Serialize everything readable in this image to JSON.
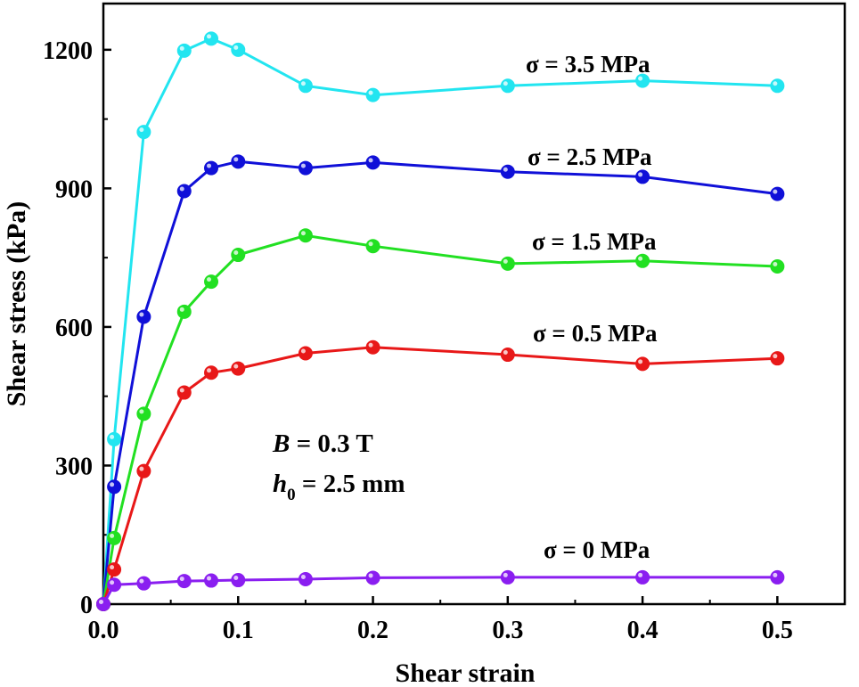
{
  "chart_data": {
    "type": "line",
    "title": "",
    "xlabel": "Shear strain",
    "ylabel": "Shear stress (kPa)",
    "xlim": [
      0,
      0.55
    ],
    "ylim": [
      0,
      1300
    ],
    "xticks": [
      0.0,
      0.1,
      0.2,
      0.3,
      0.4,
      0.5
    ],
    "xtick_labels": [
      "0.0",
      "0.1",
      "0.2",
      "0.3",
      "0.4",
      "0.5"
    ],
    "yticks": [
      0,
      300,
      600,
      900,
      1200
    ],
    "ytick_labels": [
      "0",
      "300",
      "600",
      "900",
      "1200"
    ],
    "grid": false,
    "series": [
      {
        "name": "σ = 3.5 MPa",
        "color": "#22e5f0",
        "x": [
          0,
          0.008,
          0.03,
          0.06,
          0.08,
          0.1,
          0.15,
          0.2,
          0.3,
          0.4,
          0.5
        ],
        "y": [
          0,
          357,
          1022,
          1198,
          1224,
          1200,
          1122,
          1102,
          1122,
          1133,
          1122
        ]
      },
      {
        "name": "σ = 2.5 MPa",
        "color": "#1010d8",
        "x": [
          0,
          0.008,
          0.03,
          0.06,
          0.08,
          0.1,
          0.15,
          0.2,
          0.3,
          0.4,
          0.5
        ],
        "y": [
          0,
          254,
          622,
          894,
          944,
          958,
          944,
          956,
          936,
          925,
          888
        ]
      },
      {
        "name": "σ = 1.5 MPa",
        "color": "#22e022",
        "x": [
          0,
          0.008,
          0.03,
          0.06,
          0.08,
          0.1,
          0.15,
          0.2,
          0.3,
          0.4,
          0.5
        ],
        "y": [
          0,
          143,
          412,
          633,
          698,
          756,
          798,
          775,
          737,
          743,
          731
        ]
      },
      {
        "name": "σ = 0.5 MPa",
        "color": "#e81818",
        "x": [
          0,
          0.008,
          0.03,
          0.06,
          0.08,
          0.1,
          0.15,
          0.2,
          0.3,
          0.4,
          0.5
        ],
        "y": [
          0,
          75,
          288,
          458,
          501,
          510,
          543,
          556,
          540,
          520,
          532
        ]
      },
      {
        "name": "σ = 0 MPa",
        "color": "#8a1ef0",
        "x": [
          0,
          0.008,
          0.03,
          0.06,
          0.08,
          0.1,
          0.15,
          0.2,
          0.3,
          0.4,
          0.5
        ],
        "y": [
          0,
          42,
          45,
          50,
          51,
          52,
          54,
          57,
          58,
          58,
          58
        ]
      }
    ],
    "annotations": {
      "b_var": "B",
      "b_rest": " = 0.3 T",
      "h_var": "h",
      "h_sub": "0",
      "h_rest": " = 2.5 mm"
    }
  }
}
